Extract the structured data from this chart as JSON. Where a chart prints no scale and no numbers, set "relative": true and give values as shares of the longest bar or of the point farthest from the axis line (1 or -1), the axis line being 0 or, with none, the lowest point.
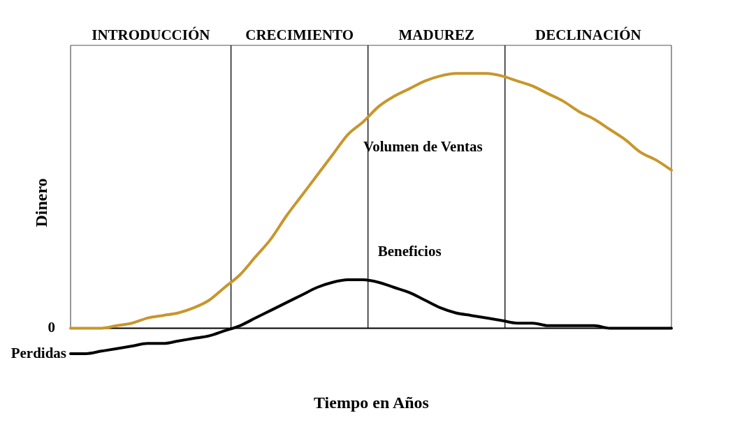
{
  "chart_data": {
    "type": "line",
    "relative": true,
    "xlabel": "Tiempo en Años",
    "ylabel": "Dinero",
    "categories": [
      null,
      null,
      null,
      null,
      null,
      null,
      null,
      null,
      null,
      null,
      null,
      null,
      null,
      null,
      null,
      null,
      null,
      null,
      null,
      null,
      null,
      null,
      null,
      null,
      null,
      null,
      null,
      null,
      null,
      null,
      null,
      null,
      null,
      null,
      null,
      null,
      null,
      null,
      null,
      null
    ],
    "series": [
      {
        "name": "Volumen de Ventas",
        "color": "#c8962c",
        "values": [
          0,
          0.0,
          0.0,
          0.01,
          0.02,
          0.04,
          0.05,
          0.06,
          0.08,
          0.11,
          0.16,
          0.21,
          0.28,
          0.35,
          0.44,
          0.52,
          0.6,
          0.68,
          0.76,
          0.81,
          0.87,
          0.91,
          0.94,
          0.97,
          0.99,
          1.0,
          1.0,
          1.0,
          0.99,
          0.97,
          0.95,
          0.92,
          0.89,
          0.85,
          0.82,
          0.78,
          0.74,
          0.69,
          0.66,
          0.62
        ]
      },
      {
        "name": "Beneficios",
        "color": "#000000",
        "values": [
          -0.1,
          -0.1,
          -0.09,
          -0.08,
          -0.07,
          -0.06,
          -0.06,
          -0.05,
          -0.04,
          -0.03,
          -0.01,
          0.01,
          0.04,
          0.07,
          0.1,
          0.13,
          0.16,
          0.18,
          0.19,
          0.19,
          0.18,
          0.16,
          0.14,
          0.11,
          0.08,
          0.06,
          0.05,
          0.04,
          0.03,
          0.02,
          0.02,
          0.01,
          0.01,
          0.01,
          0.01,
          0.0,
          0.0,
          0.0,
          0.0,
          0.0
        ]
      }
    ],
    "annotations": [
      "INTRODUCCIÓN",
      "CRECIMIENTO",
      "MADUREZ",
      "DECLINACIÓN",
      "Perdidas",
      "0"
    ],
    "grid": false
  }
}
